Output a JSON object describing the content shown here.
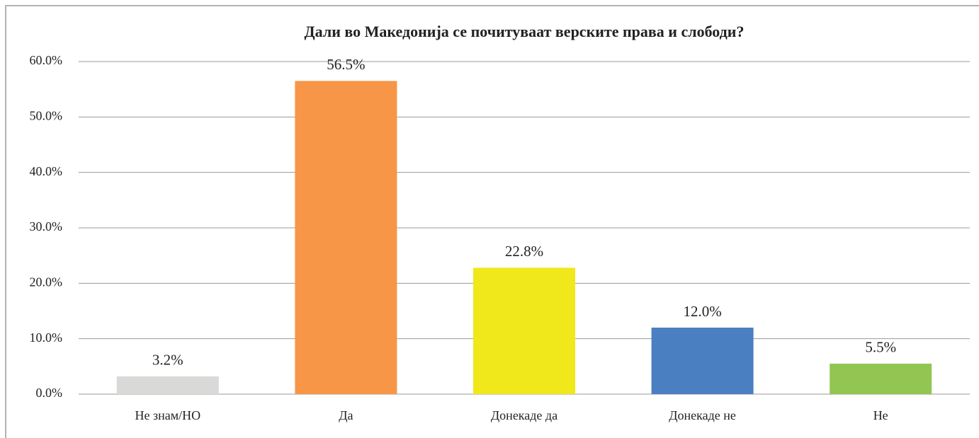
{
  "chart_data": {
    "type": "bar",
    "title": "Дали во Македонија се почитуваат верските права и слободи?",
    "categories": [
      "Не знам/НО",
      "Да",
      "Донекаде да",
      "Донекаде не",
      "Не"
    ],
    "values": [
      3.2,
      56.5,
      22.8,
      12.0,
      5.5
    ],
    "value_labels": [
      "3.2%",
      "56.5%",
      "22.8%",
      "12.0%",
      "5.5%"
    ],
    "colors": [
      "#d9d9d7",
      "#f79646",
      "#f0e81a",
      "#4a7fc1",
      "#92c552"
    ],
    "ylim": [
      0,
      60
    ],
    "yticks": [
      {
        "value": 0,
        "label": "0.0%"
      },
      {
        "value": 10,
        "label": "10.0%"
      },
      {
        "value": 20,
        "label": "20.0%"
      },
      {
        "value": 30,
        "label": "30.0%"
      },
      {
        "value": 40,
        "label": "40.0%"
      },
      {
        "value": 50,
        "label": "50.0%"
      },
      {
        "value": 60,
        "label": "60.0%"
      }
    ],
    "grid": true
  }
}
